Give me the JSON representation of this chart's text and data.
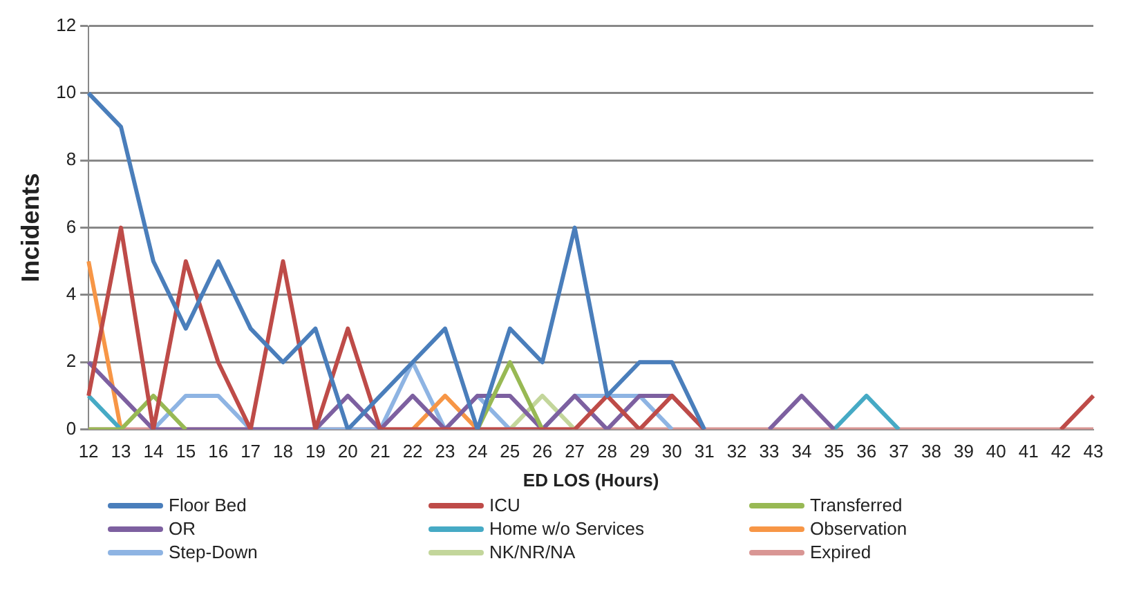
{
  "chart_data": {
    "type": "line",
    "xlabel": "ED LOS (Hours)",
    "ylabel": "Incidents",
    "categories": [
      "12",
      "13",
      "14",
      "15",
      "16",
      "17",
      "18",
      "19",
      "20",
      "21",
      "22",
      "23",
      "24",
      "25",
      "26",
      "27",
      "28",
      "29",
      "30",
      "31",
      "32",
      "33",
      "34",
      "35",
      "36",
      "37",
      "38",
      "39",
      "40",
      "41",
      "42",
      "43"
    ],
    "ylim": [
      0,
      12
    ],
    "yticks": [
      0,
      2,
      4,
      6,
      8,
      10,
      12
    ],
    "grid": "y",
    "legend": "bottom",
    "marker": "none",
    "series": [
      {
        "name": "Floor Bed",
        "color": "#4a7ebb",
        "values": [
          10,
          9,
          5,
          3,
          5,
          3,
          2,
          3,
          0,
          1,
          2,
          3,
          0,
          3,
          2,
          6,
          1,
          2,
          2,
          0,
          null,
          null,
          null,
          null,
          null,
          null,
          null,
          null,
          null,
          null,
          null,
          null
        ]
      },
      {
        "name": "ICU",
        "color": "#be4b48",
        "values": [
          1,
          6,
          0,
          5,
          2,
          0,
          5,
          0,
          3,
          0,
          0,
          0,
          0,
          0,
          0,
          0,
          1,
          0,
          1,
          0,
          null,
          null,
          null,
          null,
          null,
          null,
          null,
          null,
          null,
          null,
          0,
          1
        ]
      },
      {
        "name": "Transferred",
        "color": "#98b954",
        "values": [
          0,
          0,
          1,
          0,
          null,
          null,
          null,
          null,
          null,
          null,
          null,
          null,
          0,
          2,
          0,
          null,
          null,
          null,
          null,
          null,
          null,
          null,
          null,
          null,
          null,
          null,
          null,
          null,
          null,
          null,
          null,
          null
        ]
      },
      {
        "name": "OR",
        "color": "#7d60a0",
        "values": [
          2,
          1,
          0,
          0,
          0,
          0,
          0,
          0,
          1,
          0,
          1,
          0,
          1,
          1,
          0,
          1,
          0,
          1,
          1,
          0,
          null,
          0,
          1,
          0,
          null,
          null,
          null,
          null,
          null,
          null,
          null,
          null
        ]
      },
      {
        "name": "Home w/o Services",
        "color": "#46aac5",
        "values": [
          1,
          0,
          null,
          null,
          null,
          null,
          null,
          null,
          null,
          null,
          null,
          null,
          null,
          null,
          null,
          null,
          null,
          null,
          null,
          null,
          null,
          null,
          null,
          0,
          1,
          0,
          null,
          null,
          null,
          null,
          null,
          null
        ]
      },
      {
        "name": "Observation",
        "color": "#f79646",
        "values": [
          5,
          0,
          null,
          null,
          null,
          null,
          null,
          null,
          null,
          null,
          0,
          1,
          0,
          null,
          null,
          null,
          null,
          null,
          null,
          null,
          null,
          null,
          null,
          null,
          null,
          null,
          null,
          null,
          null,
          null,
          null,
          null
        ]
      },
      {
        "name": "Step-Down",
        "color": "#8eb4e3",
        "values": [
          null,
          null,
          0,
          1,
          1,
          0,
          0,
          0,
          0,
          0,
          2,
          0,
          1,
          0,
          0,
          1,
          1,
          1,
          0,
          null,
          null,
          null,
          null,
          null,
          null,
          null,
          null,
          null,
          null,
          null,
          null,
          null
        ]
      },
      {
        "name": "NK/NR/NA",
        "color": "#c3d69b",
        "values": [
          null,
          null,
          null,
          null,
          null,
          null,
          null,
          null,
          null,
          null,
          null,
          null,
          null,
          0,
          1,
          0,
          null,
          null,
          null,
          null,
          null,
          null,
          null,
          null,
          null,
          null,
          null,
          null,
          null,
          null,
          null,
          null
        ]
      },
      {
        "name": "Expired",
        "color": "#d99694",
        "values": [
          0,
          0,
          0,
          0,
          0,
          0,
          0,
          0,
          0,
          0,
          0,
          0,
          0,
          0,
          0,
          0,
          0,
          0,
          0,
          0,
          0,
          0,
          0,
          0,
          0,
          0,
          0,
          0,
          0,
          0,
          0,
          0
        ]
      }
    ]
  }
}
